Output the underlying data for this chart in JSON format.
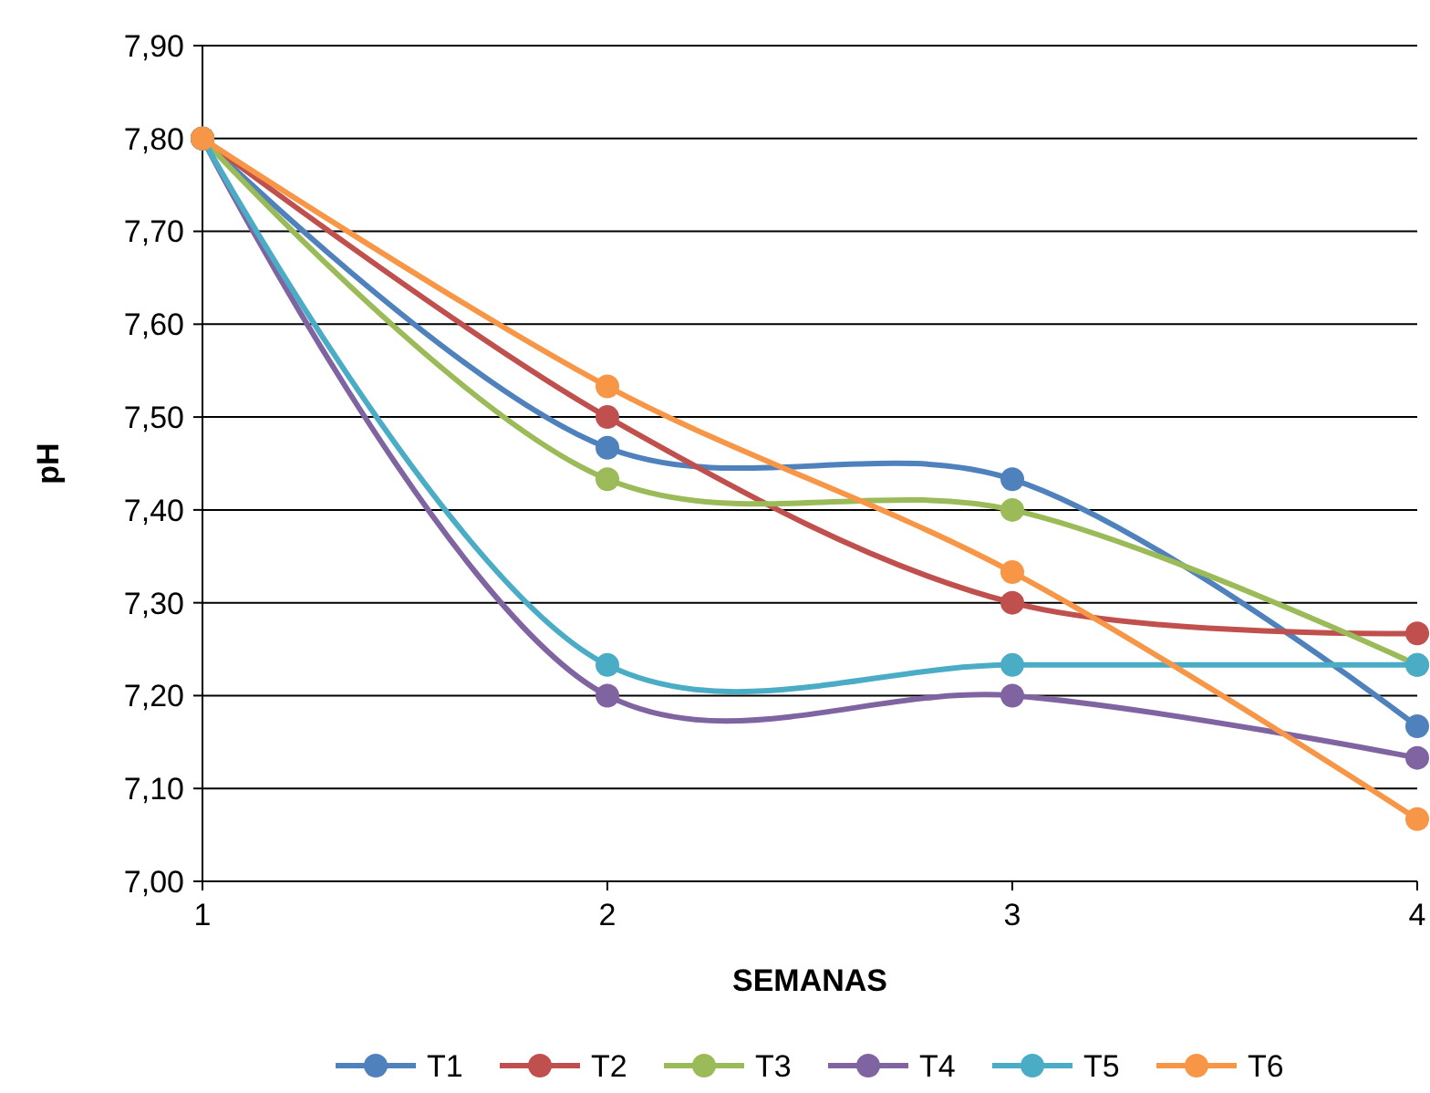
{
  "chart_data": {
    "type": "line",
    "xlabel": "SEMANAS",
    "ylabel": "pH",
    "x": [
      1,
      2,
      3,
      4
    ],
    "xlim": [
      1,
      4
    ],
    "xticks": [
      1,
      2,
      3,
      4
    ],
    "ylim": [
      7.0,
      7.9
    ],
    "yticks": [
      {
        "value": 7.0,
        "label": "7,00"
      },
      {
        "value": 7.1,
        "label": "7,10"
      },
      {
        "value": 7.2,
        "label": "7,20"
      },
      {
        "value": 7.3,
        "label": "7,30"
      },
      {
        "value": 7.4,
        "label": "7,40"
      },
      {
        "value": 7.5,
        "label": "7,50"
      },
      {
        "value": 7.6,
        "label": "7,60"
      },
      {
        "value": 7.7,
        "label": "7,70"
      },
      {
        "value": 7.8,
        "label": "7,80"
      },
      {
        "value": 7.9,
        "label": "7,90"
      }
    ],
    "grid": "y",
    "legend": "bottom",
    "marker": "circle",
    "line_style": "solid",
    "series": [
      {
        "name": "T1",
        "color": "#4f81bd",
        "values": [
          7.8,
          7.467,
          7.433,
          7.167
        ]
      },
      {
        "name": "T2",
        "color": "#c0504d",
        "values": [
          7.8,
          7.5,
          7.3,
          7.267
        ]
      },
      {
        "name": "T3",
        "color": "#9bbb59",
        "values": [
          7.8,
          7.433,
          7.4,
          7.233
        ]
      },
      {
        "name": "T4",
        "color": "#8064a2",
        "values": [
          7.8,
          7.2,
          7.2,
          7.133
        ]
      },
      {
        "name": "T5",
        "color": "#4bacc6",
        "values": [
          7.8,
          7.233,
          7.233,
          7.233
        ]
      },
      {
        "name": "T6",
        "color": "#f79646",
        "values": [
          7.8,
          7.533,
          7.333,
          7.067
        ]
      }
    ]
  }
}
